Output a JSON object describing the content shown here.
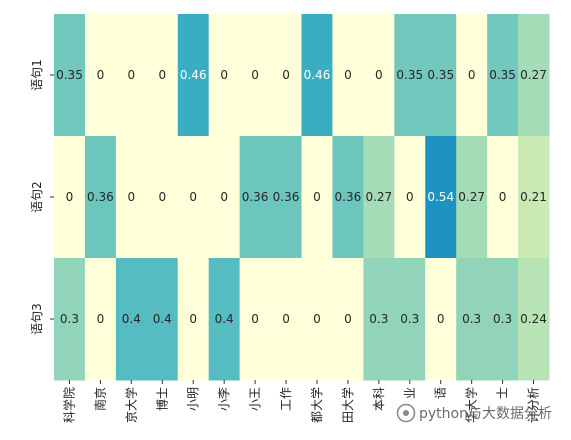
{
  "chart_data": {
    "type": "heatmap",
    "title": "",
    "xlabel": "",
    "ylabel": "",
    "x_categories": [
      "科学院",
      "南京",
      "京大学",
      "博士",
      "小明",
      "小李",
      "小王",
      "工作",
      "都大学",
      "田大学",
      "本科",
      "业",
      "语",
      "华大学",
      "士",
      "计分析"
    ],
    "y_categories": [
      "语句1",
      "语句2",
      "语句3"
    ],
    "values": [
      [
        0.35,
        0,
        0,
        0,
        0.46,
        0,
        0,
        0,
        0.46,
        0,
        0,
        0.35,
        0.35,
        0,
        0.35,
        0.27
      ],
      [
        0,
        0.36,
        0,
        0,
        0,
        0,
        0.36,
        0.36,
        0,
        0.36,
        0.27,
        0,
        0.54,
        0.27,
        0,
        0.21
      ],
      [
        0.3,
        0,
        0.4,
        0.4,
        0,
        0.4,
        0,
        0,
        0,
        0,
        0.3,
        0.3,
        0,
        0.3,
        0.3,
        0.24
      ]
    ],
    "value_labels": [
      [
        "0.35",
        "0",
        "0",
        "0",
        "0.46",
        "0",
        "0",
        "0",
        "0.46",
        "0",
        "0",
        "0.35",
        "0.35",
        "0",
        "0.35",
        "0.27"
      ],
      [
        "0",
        "0.36",
        "0",
        "0",
        "0",
        "0",
        "0.36",
        "0.36",
        "0",
        "0.36",
        "0.27",
        "0",
        "0.54",
        "0.27",
        "0",
        "0.21"
      ],
      [
        "0.3",
        "0",
        "0.4",
        "0.4",
        "0",
        "0.4",
        "0",
        "0",
        "0",
        "0",
        "0.3",
        "0.3",
        "0",
        "0.3",
        "0.3",
        "0.24"
      ]
    ],
    "colormap": "YlGnBu",
    "value_range": [
      0,
      0.54
    ],
    "colorbar": false,
    "annot": true
  },
  "watermark": {
    "text": "python与大数据分析"
  }
}
